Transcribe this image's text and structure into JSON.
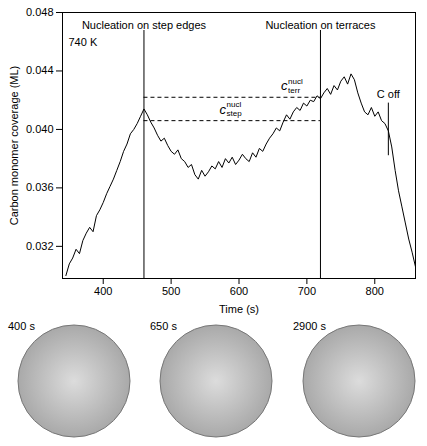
{
  "chart_data": {
    "type": "line",
    "annotation": "740 K",
    "x_label": "Time (s)",
    "y_label": "Carbon monomer coverage (ML)",
    "xlim": [
      340,
      860
    ],
    "xticks": [
      400,
      500,
      600,
      700,
      800
    ],
    "ylim": [
      0.0298,
      0.048
    ],
    "yticks": [
      0.032,
      0.036,
      {
        "value": 0.04,
        "label": "0.040"
      },
      0.044,
      0.048
    ],
    "color": "#000000",
    "x": [
      345,
      350,
      355,
      360,
      365,
      370,
      375,
      380,
      385,
      390,
      395,
      400,
      405,
      410,
      415,
      420,
      425,
      430,
      435,
      440,
      445,
      450,
      455,
      460,
      465,
      470,
      475,
      480,
      485,
      490,
      495,
      500,
      505,
      510,
      515,
      520,
      525,
      530,
      535,
      540,
      545,
      550,
      555,
      560,
      565,
      570,
      575,
      580,
      585,
      590,
      595,
      600,
      605,
      610,
      615,
      620,
      625,
      630,
      635,
      640,
      645,
      650,
      655,
      660,
      665,
      670,
      675,
      680,
      685,
      690,
      695,
      700,
      705,
      710,
      715,
      720,
      725,
      730,
      735,
      740,
      745,
      750,
      755,
      760,
      765,
      770,
      775,
      780,
      785,
      790,
      795,
      800,
      805,
      810,
      815,
      820,
      825,
      830,
      835,
      840,
      845,
      850,
      855,
      860
    ],
    "values": [
      0.03,
      0.0308,
      0.0312,
      0.0318,
      0.0315,
      0.0324,
      0.0329,
      0.0333,
      0.033,
      0.0341,
      0.0345,
      0.035,
      0.0356,
      0.0361,
      0.0366,
      0.0372,
      0.0378,
      0.0385,
      0.039,
      0.0397,
      0.04,
      0.0404,
      0.0409,
      0.0414,
      0.041,
      0.0405,
      0.0401,
      0.0396,
      0.0392,
      0.0394,
      0.0389,
      0.0385,
      0.0383,
      0.0386,
      0.038,
      0.0378,
      0.0374,
      0.0376,
      0.0369,
      0.0366,
      0.0372,
      0.0368,
      0.0371,
      0.0375,
      0.0373,
      0.0378,
      0.0374,
      0.038,
      0.0377,
      0.0381,
      0.0376,
      0.0379,
      0.0383,
      0.038,
      0.0378,
      0.0384,
      0.0381,
      0.0387,
      0.0385,
      0.039,
      0.0394,
      0.0397,
      0.0401,
      0.0399,
      0.0405,
      0.041,
      0.0407,
      0.0412,
      0.0415,
      0.0413,
      0.0418,
      0.0416,
      0.042,
      0.0419,
      0.0423,
      0.0421,
      0.0425,
      0.0428,
      0.0424,
      0.043,
      0.0427,
      0.0433,
      0.0436,
      0.0431,
      0.0438,
      0.0434,
      0.0425,
      0.0418,
      0.0412,
      0.041,
      0.0415,
      0.0409,
      0.0412,
      0.0406,
      0.0404,
      0.0399,
      0.0388,
      0.0372,
      0.0358,
      0.0347,
      0.0336,
      0.0325,
      0.0316,
      0.0306
    ],
    "vlines": [
      {
        "x": 460,
        "label": "Nucleation on step edges"
      },
      {
        "x": 720,
        "label": "Nucleation on terraces"
      },
      {
        "x": 820,
        "label": "C off",
        "y_range": [
          0.0382,
          0.0418
        ]
      }
    ],
    "hlines": [
      {
        "y": 0.0406,
        "x_range": [
          460,
          720
        ],
        "line_style": "dashed",
        "label": {
          "text": "c",
          "sup": "nucl",
          "sub": "step"
        }
      },
      {
        "y": 0.0422,
        "x_range": [
          460,
          720
        ],
        "line_style": "dashed",
        "label": {
          "text": "c",
          "sup": "nucl",
          "sub": "terr"
        }
      }
    ],
    "images": [
      {
        "label": "400 s"
      },
      {
        "label": "650 s"
      },
      {
        "label": "2900 s"
      }
    ]
  }
}
